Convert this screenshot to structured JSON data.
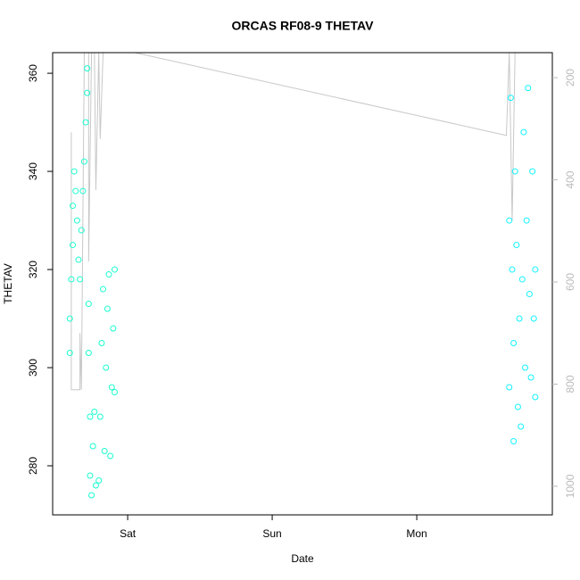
{
  "chart_data": {
    "type": "scatter",
    "title": "ORCAS RF08-9 THETAV",
    "xlabel": "Date",
    "ylabel": "THETAV",
    "xlim": [
      -0.519,
      2.938
    ],
    "xticks": [
      {
        "value": 0,
        "label": "Sat"
      },
      {
        "value": 1,
        "label": "Sun"
      },
      {
        "value": 2,
        "label": "Mon"
      }
    ],
    "ylim": [
      270,
      364.2
    ],
    "yticks": [
      280,
      300,
      320,
      340,
      360
    ],
    "y2lim": [
      1056,
      151
    ],
    "y2ticks": [
      200,
      400,
      600,
      800,
      1000
    ],
    "series": [
      {
        "color": "#19ffd0",
        "x": [
          -0.4,
          -0.4,
          -0.39,
          -0.38,
          -0.38,
          -0.37,
          -0.36,
          -0.35,
          -0.34,
          -0.33,
          -0.32,
          -0.31,
          -0.3,
          -0.29,
          -0.28,
          -0.28,
          -0.27,
          -0.27,
          -0.26,
          -0.26,
          -0.25,
          -0.24,
          -0.23,
          -0.22,
          -0.2,
          -0.19,
          -0.18,
          -0.17,
          -0.16,
          -0.15,
          -0.14,
          -0.13,
          -0.12,
          -0.11,
          -0.1,
          -0.09,
          -0.09
        ],
        "values": [
          303,
          310,
          318,
          325,
          333,
          340,
          336,
          330,
          322,
          318,
          328,
          336,
          342,
          350,
          356,
          361,
          313,
          303,
          290,
          278,
          274,
          284,
          291,
          276,
          277,
          290,
          305,
          316,
          283,
          300,
          312,
          319,
          282,
          296,
          308,
          320,
          295
        ]
      },
      {
        "color": "#10f4ff",
        "x": [
          2.64,
          2.64,
          2.65,
          2.66,
          2.67,
          2.67,
          2.68,
          2.69,
          2.7,
          2.71,
          2.72,
          2.73,
          2.74,
          2.75,
          2.76,
          2.77,
          2.78,
          2.79,
          2.8,
          2.81,
          2.82,
          2.82
        ],
        "values": [
          296,
          330,
          355,
          320,
          285,
          305,
          340,
          325,
          292,
          310,
          288,
          318,
          348,
          300,
          330,
          357,
          315,
          298,
          340,
          310,
          294,
          320
        ]
      },
      {
        "type": "line",
        "axis": "y2",
        "color": "#c8c8c8",
        "x": [
          -0.39,
          -0.39,
          -0.38,
          -0.33,
          -0.33,
          -0.32,
          -0.3,
          -0.27,
          -0.27,
          -0.25,
          -0.23,
          -0.22,
          -0.2,
          -0.19,
          -0.17,
          -0.15,
          -0.1,
          0.05,
          2.62,
          2.64,
          2.66,
          2.68,
          2.72,
          2.75,
          2.8
        ],
        "values": [
          307,
          811,
          811,
          811,
          700,
          811,
          151,
          151,
          560,
          151,
          151,
          420,
          151,
          320,
          151,
          151,
          151,
          151,
          313,
          151,
          480,
          151,
          151,
          151,
          151
        ]
      }
    ]
  }
}
